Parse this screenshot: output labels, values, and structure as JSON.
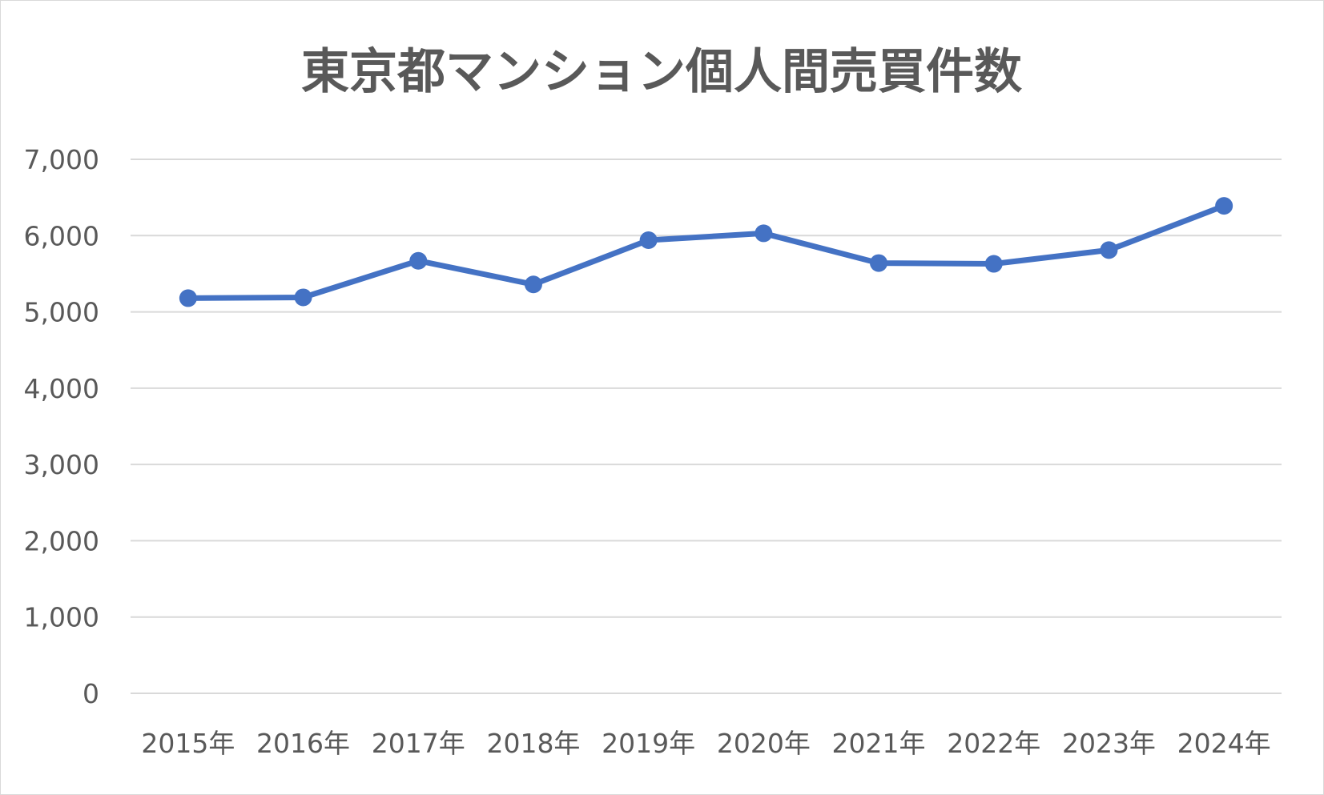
{
  "chart_data": {
    "type": "line",
    "title": "東京都マンション個人間売買件数",
    "xlabel": "",
    "ylabel": "",
    "categories": [
      "2015年",
      "2016年",
      "2017年",
      "2018年",
      "2019年",
      "2020年",
      "2021年",
      "2022年",
      "2023年",
      "2024年"
    ],
    "series": [
      {
        "values": [
          5180,
          5190,
          5670,
          5360,
          5940,
          6030,
          5640,
          5630,
          5810,
          6390
        ],
        "color": "#4472c4"
      }
    ],
    "ylim": [
      0,
      7000
    ],
    "yticks": [
      0,
      1000,
      2000,
      3000,
      4000,
      5000,
      6000,
      7000
    ],
    "ytick_labels": [
      "0",
      "1,000",
      "2,000",
      "3,000",
      "4,000",
      "5,000",
      "6,000",
      "7,000"
    ],
    "grid": true,
    "legend": "none",
    "markers": true
  }
}
